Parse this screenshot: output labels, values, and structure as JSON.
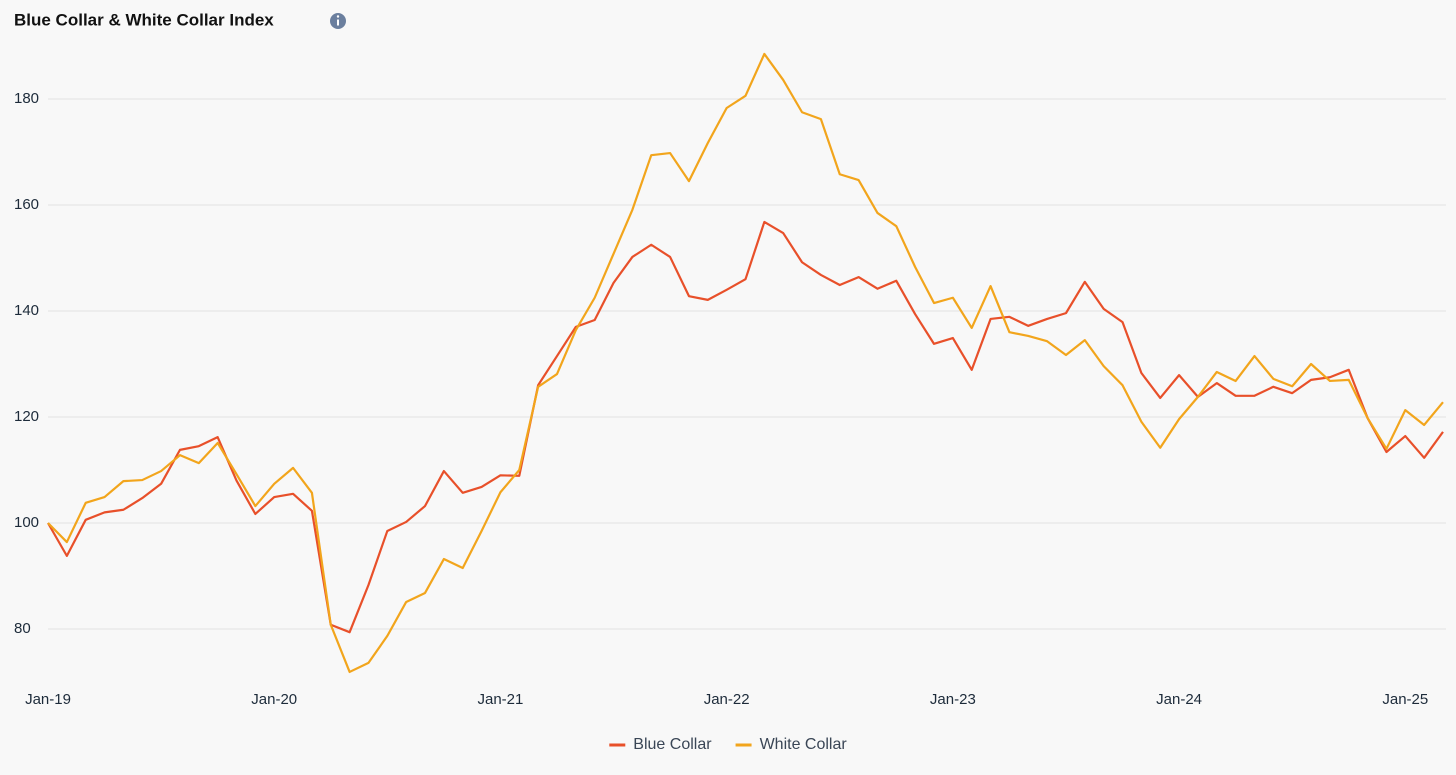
{
  "chart_data": {
    "type": "line",
    "title": "Blue Collar & White Collar Index",
    "categories": [
      "Jan-19",
      null,
      null,
      null,
      null,
      null,
      null,
      null,
      null,
      null,
      null,
      null,
      "Jan-20",
      null,
      null,
      null,
      null,
      null,
      null,
      null,
      null,
      null,
      null,
      null,
      "Jan-21",
      null,
      null,
      null,
      null,
      null,
      null,
      null,
      null,
      null,
      null,
      null,
      "Jan-22",
      null,
      null,
      null,
      null,
      null,
      null,
      null,
      null,
      null,
      null,
      null,
      "Jan-23",
      null,
      null,
      null,
      null,
      null,
      null,
      null,
      null,
      null,
      null,
      null,
      "Jan-24",
      null,
      null,
      null,
      null,
      null,
      null,
      null,
      null,
      null,
      null,
      null,
      "Jan-25",
      null,
      null
    ],
    "series": [
      {
        "name": "Blue Collar",
        "color": "#e8502a",
        "values": [
          100,
          93.8,
          100.6,
          102,
          102.5,
          104.7,
          107.4,
          113.8,
          114.5,
          116.2,
          108,
          101.7,
          104.9,
          105.5,
          102.3,
          80.8,
          79.4,
          88.3,
          98.5,
          100.2,
          103.2,
          109.8,
          105.7,
          106.8,
          109,
          108.9,
          126,
          131.5,
          137,
          138.3,
          145.3,
          150.2,
          152.5,
          150.2,
          142.8,
          142.1,
          144,
          146,
          156.8,
          154.7,
          149.2,
          146.8,
          144.9,
          146.4,
          144.2,
          145.7,
          139.4,
          133.8,
          134.9,
          128.9,
          138.5,
          138.9,
          137.2,
          138.5,
          139.6,
          145.5,
          140.4,
          137.9,
          128.3,
          123.6,
          127.9,
          123.8,
          126.4,
          124,
          124,
          125.7,
          124.5,
          127,
          127.5,
          128.9,
          119.8,
          113.4,
          116.4,
          112.3,
          117.2
        ]
      },
      {
        "name": "White Collar",
        "color": "#f2a51c",
        "values": [
          100,
          96.4,
          103.8,
          104.9,
          107.9,
          108.1,
          109.8,
          112.8,
          111.3,
          115.1,
          109.2,
          103.2,
          107.4,
          110.4,
          105.7,
          80.8,
          71.9,
          73.6,
          78.7,
          85.1,
          86.8,
          93.2,
          91.5,
          98.5,
          105.8,
          110,
          125.7,
          128.1,
          136.4,
          142.5,
          150.8,
          159.1,
          169.4,
          169.8,
          164.5,
          171.7,
          178.3,
          180.6,
          188.5,
          183.6,
          177.5,
          176.2,
          165.8,
          164.7,
          158.5,
          156,
          148.3,
          141.5,
          142.5,
          136.8,
          144.7,
          136,
          135.3,
          134.3,
          131.7,
          134.5,
          129.6,
          126,
          119.1,
          114.2,
          119.6,
          123.8,
          128.5,
          126.8,
          131.5,
          127.2,
          125.8,
          130,
          126.8,
          127,
          119.8,
          114,
          121.3,
          118.5,
          122.8
        ]
      }
    ],
    "ylim": [
      70,
      190
    ],
    "yticks": [
      80,
      100,
      120,
      140,
      160,
      180
    ],
    "grid": true,
    "legend": "bottom"
  }
}
